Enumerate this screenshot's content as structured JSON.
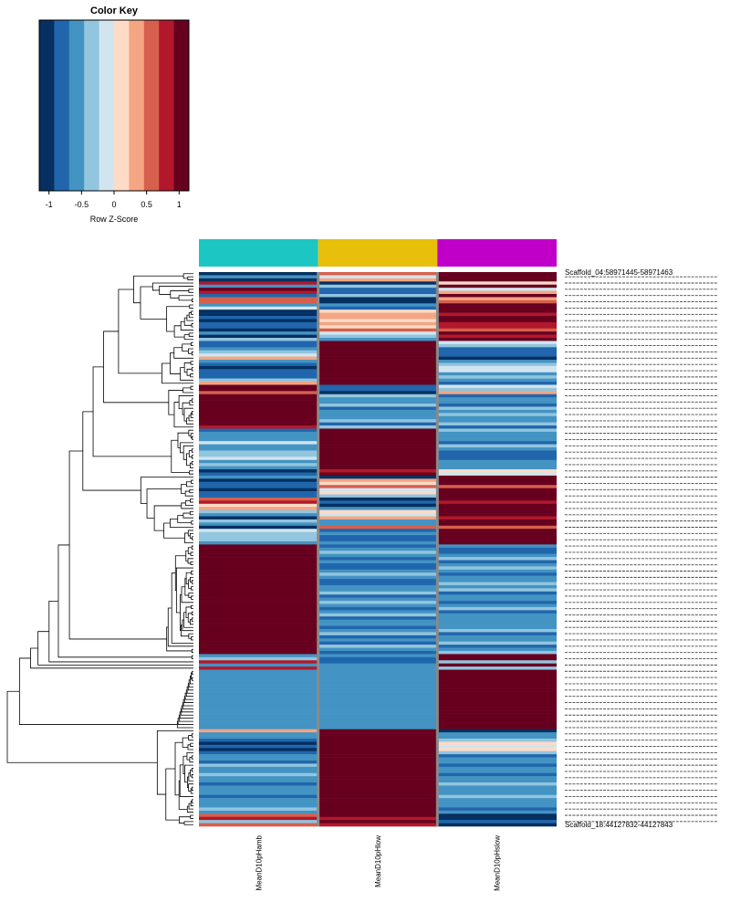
{
  "chart_data": {
    "type": "heatmap",
    "color_key": {
      "title": "Color Key",
      "xlabel": "Row Z-Score",
      "ticks": [
        "-1",
        "-0.5",
        "0",
        "0.5",
        "1"
      ],
      "tick_values": [
        -1,
        -0.5,
        0,
        0.5,
        1
      ],
      "range": [
        -1.15,
        1.15
      ],
      "colors": [
        "#053061",
        "#2166ac",
        "#4393c3",
        "#92c5de",
        "#d1e5f0",
        "#fddbc7",
        "#f4a582",
        "#d6604d",
        "#b2182b",
        "#67001f"
      ]
    },
    "columns": [
      {
        "label": "MeanD10pHamb",
        "color": "#1cc6c3"
      },
      {
        "label": "MeanD10pHlow",
        "color": "#e8bf0a"
      },
      {
        "label": "MeanD10pHslow",
        "color": "#c000c8"
      }
    ],
    "row_label_top": "Scaffold_04:58971445-58971463",
    "row_label_bottom": "Scaffold_18:44127832-44127843",
    "rows": [
      [
        -1,
        0.5,
        1
      ],
      [
        -0.5,
        -0.1,
        1
      ],
      [
        -1,
        0.3,
        1
      ],
      [
        0.9,
        -1,
        0.1
      ],
      [
        -0.6,
        -0.4,
        1
      ],
      [
        1,
        -0.8,
        -0.2
      ],
      [
        0.9,
        -0.9,
        0.3
      ],
      [
        -0.7,
        -0.3,
        1
      ],
      [
        0.6,
        -1,
        0.4
      ],
      [
        0.6,
        -1,
        0.5
      ],
      [
        -0.5,
        -0.5,
        1
      ],
      [
        -0.2,
        -0.8,
        1
      ],
      [
        -1,
        0.2,
        1
      ],
      [
        -1,
        0.4,
        0.9
      ],
      [
        -0.8,
        0.3,
        1
      ],
      [
        -1,
        0.1,
        1
      ],
      [
        -0.9,
        0.3,
        0.7
      ],
      [
        -0.8,
        0.2,
        0.8
      ],
      [
        -1,
        0.5,
        0.6
      ],
      [
        -0.6,
        -0.2,
        1
      ],
      [
        -1,
        -0.4,
        0.8
      ],
      [
        -0.4,
        -0.6,
        1
      ],
      [
        -0.8,
        1,
        -0.2
      ],
      [
        -0.9,
        1,
        -0.4
      ],
      [
        -0.6,
        1,
        -0.7
      ],
      [
        -0.3,
        1,
        -0.8
      ],
      [
        -0.2,
        1,
        -0.9
      ],
      [
        0.3,
        1,
        -1
      ],
      [
        -0.5,
        1,
        -0.5
      ],
      [
        -0.7,
        1,
        -0.3
      ],
      [
        -1,
        1,
        -0.1
      ],
      [
        -0.9,
        1,
        -0.2
      ],
      [
        -0.7,
        1,
        -0.6
      ],
      [
        -0.8,
        1,
        -0.3
      ],
      [
        -0.4,
        1,
        -0.6
      ],
      [
        0.3,
        1,
        -0.9
      ],
      [
        1,
        -0.9,
        -0.2
      ],
      [
        1,
        -0.7,
        -0.4
      ],
      [
        0.5,
        -1,
        0.4
      ],
      [
        1,
        -0.3,
        -0.8
      ],
      [
        1,
        -0.5,
        -0.6
      ],
      [
        1,
        -0.6,
        -0.5
      ],
      [
        1,
        -0.4,
        -0.7
      ],
      [
        1,
        -0.7,
        -0.3
      ],
      [
        1,
        -0.5,
        -0.5
      ],
      [
        1,
        -0.6,
        -0.4
      ],
      [
        1,
        -0.5,
        -0.5
      ],
      [
        1,
        -0.4,
        -0.6
      ],
      [
        1,
        -0.7,
        -0.4
      ],
      [
        0.7,
        -0.3,
        -0.9
      ],
      [
        -0.7,
        1,
        -0.4
      ],
      [
        -0.5,
        1,
        -0.6
      ],
      [
        -0.6,
        1,
        -0.5
      ],
      [
        -0.5,
        1,
        -0.5
      ],
      [
        -0.2,
        1,
        -0.9
      ],
      [
        -0.6,
        1,
        -0.4
      ],
      [
        -0.5,
        1,
        -0.6
      ],
      [
        -0.4,
        1,
        -0.7
      ],
      [
        -0.3,
        1,
        -0.8
      ],
      [
        -0.2,
        1,
        -0.9
      ],
      [
        -0.5,
        1,
        -0.5
      ],
      [
        -0.4,
        1,
        -0.6
      ],
      [
        -0.6,
        1,
        -0.5
      ],
      [
        -1,
        0.9,
        0.2
      ],
      [
        -0.8,
        1,
        -0.2
      ],
      [
        -0.5,
        -1,
        1
      ],
      [
        -1,
        0.3,
        1
      ],
      [
        -0.9,
        0.1,
        1
      ],
      [
        -0.8,
        0.5,
        0.6
      ],
      [
        -1,
        -0.2,
        1
      ],
      [
        -0.9,
        0.2,
        1
      ],
      [
        -0.7,
        -0.4,
        1
      ],
      [
        0.6,
        -1,
        1
      ],
      [
        0.8,
        -0.8,
        0.8
      ],
      [
        0.2,
        -1,
        1
      ],
      [
        0.4,
        -0.5,
        1
      ],
      [
        -0.3,
        0.1,
        1
      ],
      [
        -0.5,
        -0.2,
        1
      ],
      [
        -1,
        0.4,
        0.8
      ],
      [
        -0.3,
        -0.5,
        1
      ],
      [
        -0.5,
        -0.5,
        1
      ],
      [
        -1,
        0.5,
        0.6
      ],
      [
        -0.2,
        -0.8,
        1
      ],
      [
        -0.4,
        -0.6,
        1
      ],
      [
        -0.4,
        -0.8,
        1
      ],
      [
        -0.3,
        -0.8,
        1
      ],
      [
        -0.6,
        -0.5,
        1
      ],
      [
        1,
        -0.7,
        -0.6
      ],
      [
        1,
        -0.6,
        -0.7
      ],
      [
        1,
        -0.3,
        -0.8
      ],
      [
        1,
        -0.5,
        -0.6
      ],
      [
        1,
        -0.8,
        -0.4
      ],
      [
        1,
        -0.5,
        -0.7
      ],
      [
        1,
        -0.7,
        -0.5
      ],
      [
        1,
        -0.9,
        -0.3
      ],
      [
        1,
        -0.6,
        -0.6
      ],
      [
        1,
        -0.4,
        -0.7
      ],
      [
        1,
        -0.6,
        -0.5
      ],
      [
        1,
        -0.8,
        -0.5
      ],
      [
        1,
        -0.7,
        -0.4
      ],
      [
        1,
        -0.5,
        -0.6
      ],
      [
        1,
        -0.6,
        -0.4
      ],
      [
        1,
        -0.4,
        -0.7
      ],
      [
        1,
        -0.7,
        -0.5
      ],
      [
        1,
        -0.5,
        -0.6
      ],
      [
        1,
        -0.3,
        -0.8
      ],
      [
        1,
        -0.6,
        -0.5
      ],
      [
        1,
        -0.8,
        -0.4
      ],
      [
        1,
        -0.5,
        -0.7
      ],
      [
        1,
        -0.4,
        -0.6
      ],
      [
        1,
        -0.7,
        -0.5
      ],
      [
        1,
        -0.6,
        -0.6
      ],
      [
        1,
        -0.5,
        -0.5
      ],
      [
        1,
        -0.8,
        -0.5
      ],
      [
        1,
        -0.6,
        -0.4
      ],
      [
        1,
        -0.4,
        -0.7
      ],
      [
        1,
        -0.7,
        -0.6
      ],
      [
        1,
        -0.5,
        -0.5
      ],
      [
        1,
        -0.9,
        -0.3
      ],
      [
        1,
        -0.3,
        -0.8
      ],
      [
        1,
        -0.6,
        -0.5
      ],
      [
        1,
        -0.7,
        -0.4
      ],
      [
        -0.5,
        -0.6,
        1
      ],
      [
        -0.4,
        -0.7,
        1
      ],
      [
        0.9,
        -0.8,
        -0.3
      ],
      [
        -0.6,
        -0.5,
        1
      ],
      [
        0.7,
        -0.6,
        -0.4
      ],
      [
        -0.5,
        -0.6,
        1
      ],
      [
        -0.6,
        -0.6,
        1
      ],
      [
        -0.6,
        -0.5,
        1
      ],
      [
        -0.6,
        -0.6,
        1
      ],
      [
        -0.5,
        -0.6,
        1
      ],
      [
        -0.6,
        -0.5,
        1
      ],
      [
        -0.6,
        -0.6,
        1
      ],
      [
        -0.5,
        -0.6,
        1
      ],
      [
        -0.6,
        -0.6,
        1
      ],
      [
        -0.6,
        -0.5,
        1
      ],
      [
        -0.6,
        -0.6,
        1
      ],
      [
        -0.5,
        -0.6,
        1
      ],
      [
        -0.6,
        -0.6,
        1
      ],
      [
        -0.6,
        -0.5,
        1
      ],
      [
        -0.6,
        -0.6,
        1
      ],
      [
        -0.5,
        -0.6,
        1
      ],
      [
        -0.6,
        -0.6,
        1
      ],
      [
        -0.6,
        -0.5,
        1
      ],
      [
        -0.6,
        -0.6,
        1
      ],
      [
        0.4,
        1,
        -1
      ],
      [
        -0.6,
        1,
        -0.5
      ],
      [
        -0.5,
        1,
        -0.6
      ],
      [
        -0.8,
        1,
        -0.3
      ],
      [
        -1,
        1,
        0.1
      ],
      [
        -0.9,
        1,
        -0.2
      ],
      [
        -1,
        1,
        0.2
      ],
      [
        -0.8,
        1,
        -0.4
      ],
      [
        -0.5,
        1,
        -0.7
      ],
      [
        -0.6,
        1,
        -0.6
      ],
      [
        -0.7,
        1,
        -0.5
      ],
      [
        -0.4,
        1,
        -0.8
      ],
      [
        -0.5,
        1,
        -0.6
      ],
      [
        -0.6,
        1,
        -0.5
      ],
      [
        -0.4,
        1,
        -0.7
      ],
      [
        -0.5,
        1,
        -0.6
      ],
      [
        -0.6,
        1,
        -0.5
      ],
      [
        -0.7,
        1,
        -0.4
      ],
      [
        -0.5,
        1,
        -0.6
      ],
      [
        -0.6,
        1,
        -0.5
      ],
      [
        -0.5,
        1,
        -0.6
      ],
      [
        -0.8,
        1,
        -0.3
      ],
      [
        -0.5,
        1,
        -0.6
      ],
      [
        -0.6,
        1,
        -0.5
      ],
      [
        -0.5,
        1,
        -0.6
      ],
      [
        -0.4,
        1,
        -0.7
      ],
      [
        -0.6,
        1,
        -0.5
      ],
      [
        0.5,
        1,
        -1
      ],
      [
        0.8,
        0.9,
        -1
      ],
      [
        -0.4,
        1,
        -0.7
      ],
      [
        0.6,
        0.8,
        -1
      ]
    ]
  }
}
